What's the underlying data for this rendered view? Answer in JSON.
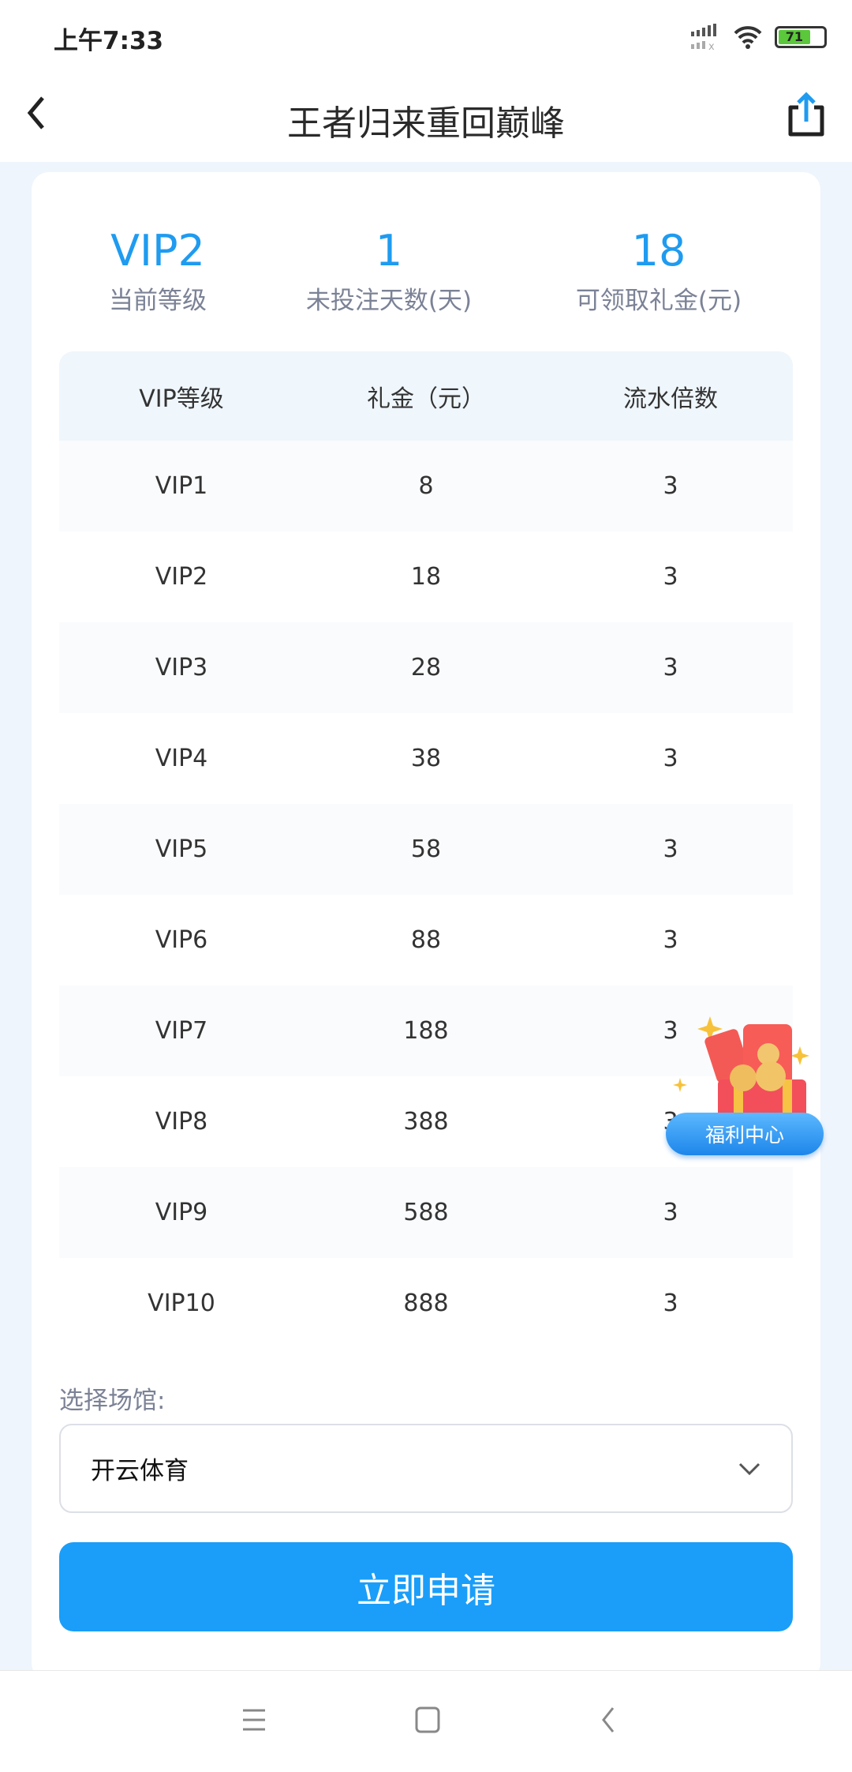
{
  "status_bar": {
    "time": "上午7:33",
    "battery": "71"
  },
  "nav": {
    "title": "王者归来重回巅峰",
    "back_icon": "chevron-left-icon",
    "share_icon": "share-icon"
  },
  "stats": [
    {
      "value": "VIP2",
      "label": "当前等级"
    },
    {
      "value": "1",
      "label": "未投注天数(天)"
    },
    {
      "value": "18",
      "label": "可领取礼金(元)"
    }
  ],
  "table": {
    "headers": [
      "VIP等级",
      "礼金（元）",
      "流水倍数"
    ],
    "rows": [
      [
        "VIP1",
        "8",
        "3"
      ],
      [
        "VIP2",
        "18",
        "3"
      ],
      [
        "VIP3",
        "28",
        "3"
      ],
      [
        "VIP4",
        "38",
        "3"
      ],
      [
        "VIP5",
        "58",
        "3"
      ],
      [
        "VIP6",
        "88",
        "3"
      ],
      [
        "VIP7",
        "188",
        "3"
      ],
      [
        "VIP8",
        "388",
        "3"
      ],
      [
        "VIP9",
        "588",
        "3"
      ],
      [
        "VIP10",
        "888",
        "3"
      ]
    ]
  },
  "venue": {
    "label": "选择场馆:",
    "selected": "开云体育"
  },
  "apply_button": "立即申请",
  "float_widget": {
    "label": "福利中心"
  },
  "colors": {
    "accent": "#1a9ef9",
    "background": "#eef5fc"
  }
}
